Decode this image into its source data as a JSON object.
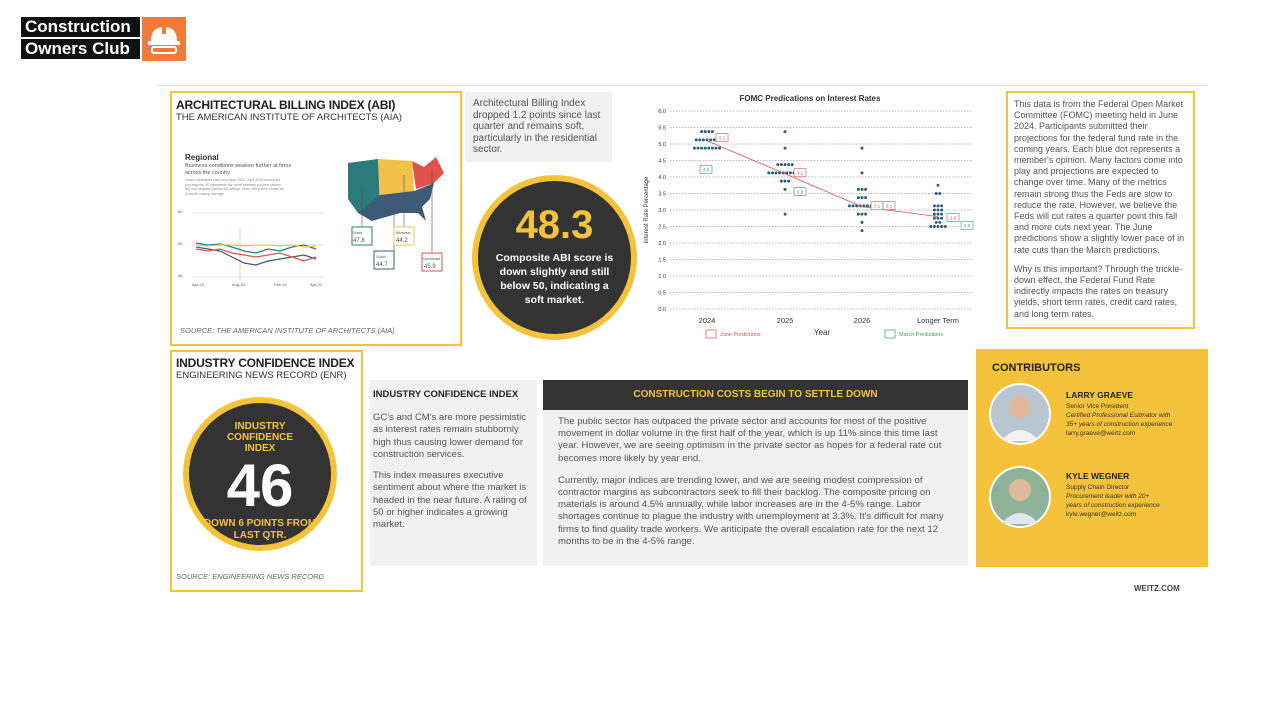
{
  "brand": {
    "line1": "Construction",
    "line2": "Owners Club",
    "accent": "#f07a3a"
  },
  "abi": {
    "title": "ARCHITECTURAL BILLING INDEX (ABI)",
    "subtitle": "THE AMERICAN INSTITUTE OF ARCHITECTS (AIA)",
    "map_heading": "Regional",
    "map_caption": "Business conditions weaken further at firms across the country",
    "map_small": "Graph represents data from April 2023 - April 2024 across the four regions; 50 represents the cutoff between positive (above 50) and negative (below 50) billings. Note: ABI scores shown as 3-month moving average",
    "y_ticks": [
      "60",
      "50",
      "40"
    ],
    "x_ticks": [
      "Apr-23",
      "Aug-23",
      "Feb-24",
      "Apr-24"
    ],
    "regions": [
      {
        "name": "West",
        "value": "47.8",
        "color": "#2b7b7a"
      },
      {
        "name": "South",
        "value": "44.7",
        "color": "#3d5a77"
      },
      {
        "name": "Midwest",
        "value": "44.2",
        "color": "#f3c14a"
      },
      {
        "name": "Northeast",
        "value": "45.9",
        "color": "#e0524a"
      }
    ],
    "source": "SOURCE: THE AMERICAN INSTITUTE OF ARCHITECTS (AIA)",
    "note": "Architectural Billing Index dropped 1.2 points since last quarter and remains soft, particularly in the residential sector.",
    "score": "48.3",
    "score_text": "Composite ABI score is down slightly and still below 50, indicating a soft market."
  },
  "fomc_chart": {
    "title": "FOMC Predications on Interest Rates",
    "ylabel": "Interest Rate Percentage",
    "xlabel": "Year",
    "y_ticks": [
      "6.0",
      "5.5",
      "5.0",
      "4.5",
      "4.0",
      "3.5",
      "3.0",
      "2.5",
      "2.0",
      "1.5",
      "1.0",
      "0.5",
      "0.0"
    ],
    "x_ticks": [
      "2024",
      "2025",
      "2026",
      "Longer Term"
    ],
    "june_label": "June Predictions",
    "march_label": "March Predictions",
    "june_color": "#d9534f",
    "march_color": "#3a9a4a",
    "dot_color": "#2b5d7d"
  },
  "chart_data": {
    "type": "scatter",
    "title": "FOMC Predications on Interest Rates",
    "xlabel": "Year",
    "ylabel": "Interest Rate Percentage",
    "categories": [
      "2024",
      "2025",
      "2026",
      "Longer Term"
    ],
    "ylim": [
      0,
      6
    ],
    "grid": true,
    "legend": "bottom",
    "series": [
      {
        "name": "June Predictions",
        "values": [
          5.1,
          4.1,
          3.1,
          2.8
        ]
      },
      {
        "name": "March Predictions",
        "values": [
          4.6,
          3.8,
          3.1,
          2.6
        ]
      }
    ],
    "dots": [
      {
        "x": "2024",
        "y": [
          5.375,
          5.375,
          5.375,
          5.375,
          5.125,
          5.125,
          5.125,
          5.125,
          5.125,
          5.125,
          5.125,
          4.875,
          4.875,
          4.875,
          4.875,
          4.875,
          4.875,
          4.875,
          4.875
        ]
      },
      {
        "x": "2025",
        "y": [
          5.375,
          4.875,
          4.375,
          4.375,
          4.375,
          4.375,
          4.375,
          4.125,
          4.125,
          4.125,
          4.125,
          4.125,
          4.125,
          4.125,
          4.125,
          4.125,
          4.125,
          3.875,
          3.875,
          3.875,
          3.625,
          2.875
        ]
      },
      {
        "x": "2026",
        "y": [
          4.875,
          4.125,
          3.625,
          3.625,
          3.625,
          3.375,
          3.375,
          3.375,
          3.125,
          3.125,
          3.125,
          3.125,
          3.125,
          3.125,
          3.125,
          3.125,
          2.875,
          2.875,
          2.875,
          2.625,
          2.375
        ]
      },
      {
        "x": "Longer Term",
        "y": [
          3.75,
          3.5,
          3.5,
          3.125,
          3.125,
          3.125,
          3.0,
          3.0,
          3.0,
          2.875,
          2.875,
          2.875,
          2.75,
          2.75,
          2.75,
          2.625,
          2.625,
          2.5,
          2.5,
          2.5,
          2.5,
          2.5
        ]
      }
    ]
  },
  "fomc_text": {
    "para1": "This data is from the Federal Open Market Committee (FOMC) meeting held in June 2024. Participants submitted their projections for the federal fund rate in the coming years. Each blue dot represents a member's opinion. Many factors come into play and projections are expected to change over time. Many of the metrics remain strong thus the Feds are slow to reduce the rate. However, we believe the Feds will cut rates a quarter point this fall and more cuts next year. The June predictions show a slightly lower pace of in rate cuts than the March predictions.",
    "para2": "Why is this important? Through the trickle-down effect, the Federal Fund Rate indirectly impacts the rates on treasury yields, short term rates, credit card rates, and long term rates."
  },
  "ici": {
    "title": "INDUSTRY CONFIDENCE INDEX",
    "subtitle": "ENGINEERING NEWS RECORD (ENR)",
    "circle_top": "INDUSTRY CONFIDENCE INDEX",
    "score": "46",
    "circle_bottom": "DOWN 6 POINTS FROM LAST QTR.",
    "source": "SOURCE: ENGINEERING NEWS RECORD",
    "panel_title": "INDUSTRY CONFIDENCE INDEX",
    "para1": "GC's and CM's are more pessimistic as interest rates remain stubbornly high thus causing lower demand for construction services.",
    "para2": "This index measures executive sentiment about where the market is headed in the near future. A rating of 50 or higher indicates a growing market."
  },
  "costs": {
    "title": "CONSTRUCTION COSTS BEGIN TO SETTLE DOWN",
    "para1": "The public sector has outpaced the private sector and accounts for most of the positive movement in dollar volume in the first half of the year, which is up 11% since this time last year. However, we are seeing optimism in the private sector as hopes for a federal rate cut becomes more likely by year end.",
    "para2": "Currently, major indices are trending lower, and we are seeing modest compression of contractor margins as subcontractors seek to fill their backlog. The composite pricing on materials is around 4.5% annually, while labor increases are in the 4-5% range. Labor shortages continue to plague the industry with unemployment at 3.3%. It's difficult for many firms to find quality trade workers. We anticipate the overall escalation rate for the next 12 months to be in the 4-5% range."
  },
  "contributors": {
    "heading": "CONTRIBUTORS",
    "people": [
      {
        "name": "LARRY GRAEVE",
        "role": "Senior Vice President",
        "desc1": "Certified Professional Estimator with",
        "desc2": "35+ years of construction experience",
        "email": "larry.graeve@weitz.com"
      },
      {
        "name": "KYLE WEGNER",
        "role": "Supply Chain Director",
        "desc1": "Procurement leader with 20+",
        "desc2": "years of construction experience",
        "email": "kyle.wegner@weitz.com"
      }
    ]
  },
  "footer": {
    "site": "WEITZ.COM"
  }
}
